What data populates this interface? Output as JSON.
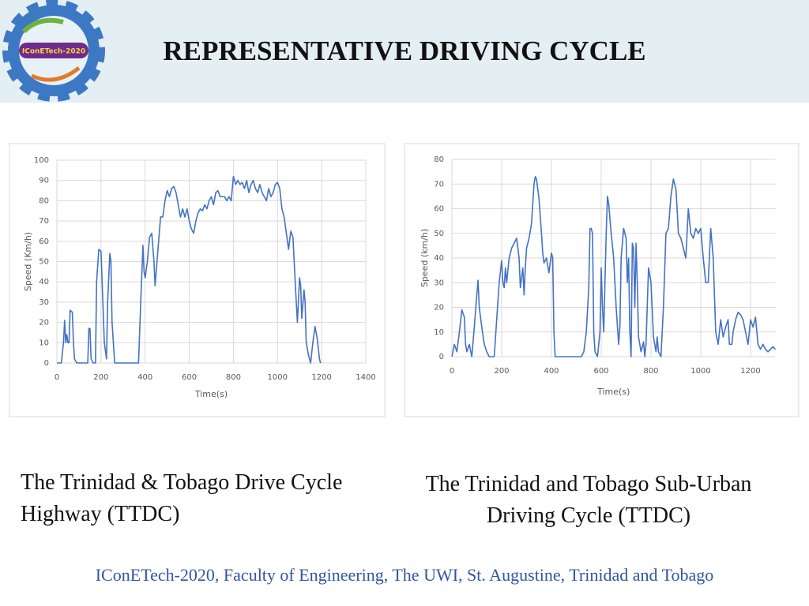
{
  "title": "REPRESENTATIVE DRIVING CYCLE",
  "logo_text": "IConETech-2020",
  "footer": "IConETech-2020, Faculty of Engineering, The UWI, St. Augustine, Trinidad and Tobago",
  "chart_data": [
    {
      "type": "line",
      "caption": "The Trinidad & Tobago Drive Cycle Highway (TTDC)",
      "xlabel": "Time(s)",
      "ylabel": "Speed (Km/h)",
      "color": "#4472c4",
      "grid": true,
      "xlim": [
        0,
        1400
      ],
      "xticks": [
        0,
        200,
        400,
        600,
        800,
        1000,
        1200,
        1400
      ],
      "ylim": [
        0,
        100
      ],
      "yticks": [
        0,
        10,
        20,
        30,
        40,
        50,
        60,
        70,
        80,
        90,
        100
      ],
      "x": [
        0,
        20,
        30,
        35,
        40,
        45,
        50,
        55,
        60,
        70,
        75,
        80,
        90,
        140,
        145,
        150,
        155,
        165,
        175,
        180,
        185,
        190,
        200,
        205,
        215,
        225,
        230,
        240,
        245,
        250,
        262,
        370,
        380,
        390,
        395,
        400,
        410,
        420,
        430,
        440,
        445,
        450,
        470,
        480,
        490,
        500,
        510,
        520,
        530,
        540,
        550,
        560,
        570,
        580,
        590,
        600,
        610,
        620,
        630,
        640,
        650,
        660,
        670,
        680,
        690,
        700,
        710,
        720,
        730,
        740,
        750,
        760,
        770,
        780,
        790,
        800,
        810,
        820,
        830,
        840,
        850,
        860,
        870,
        880,
        890,
        900,
        910,
        920,
        930,
        940,
        950,
        960,
        970,
        980,
        990,
        1000,
        1010,
        1020,
        1030,
        1040,
        1050,
        1060,
        1070,
        1080,
        1090,
        1100,
        1105,
        1110,
        1120,
        1125,
        1130,
        1140,
        1150,
        1160,
        1170,
        1180,
        1190,
        1195
      ],
      "values": [
        0,
        0,
        10,
        21,
        10,
        14,
        10,
        10,
        26,
        25,
        10,
        2,
        0,
        0,
        17,
        17,
        2,
        0,
        0,
        40,
        48,
        56,
        55,
        40,
        10,
        2,
        30,
        54,
        50,
        20,
        0,
        0,
        30,
        58,
        45,
        42,
        50,
        62,
        64,
        50,
        38,
        45,
        72,
        72,
        80,
        85,
        82,
        86,
        87,
        84,
        78,
        72,
        76,
        72,
        76,
        70,
        66,
        64,
        70,
        74,
        76,
        75,
        78,
        76,
        80,
        82,
        78,
        84,
        85,
        82,
        82,
        82,
        80,
        82,
        80,
        92,
        88,
        90,
        88,
        89,
        86,
        90,
        84,
        88,
        90,
        86,
        84,
        88,
        84,
        82,
        80,
        86,
        82,
        84,
        88,
        89,
        86,
        76,
        72,
        64,
        56,
        65,
        62,
        40,
        20,
        42,
        38,
        22,
        36,
        30,
        10,
        4,
        0,
        10,
        18,
        12,
        2,
        0
      ]
    },
    {
      "type": "line",
      "caption": "The Trinidad and Tobago Sub-Urban Driving Cycle (TTDC)",
      "xlabel": "Time(s)",
      "ylabel": "Speed (km/h)",
      "color": "#4472c4",
      "grid": true,
      "xlim": [
        0,
        1300
      ],
      "xticks": [
        0,
        200,
        400,
        600,
        800,
        1000,
        1200
      ],
      "ylim": [
        0,
        80
      ],
      "yticks": [
        0,
        10,
        20,
        30,
        40,
        50,
        60,
        70,
        80
      ],
      "x": [
        0,
        10,
        20,
        30,
        40,
        50,
        55,
        60,
        70,
        80,
        90,
        100,
        105,
        110,
        120,
        130,
        140,
        150,
        170,
        180,
        190,
        200,
        205,
        210,
        215,
        220,
        230,
        240,
        250,
        260,
        270,
        275,
        280,
        285,
        290,
        295,
        300,
        310,
        320,
        330,
        335,
        340,
        350,
        360,
        365,
        370,
        380,
        390,
        400,
        405,
        410,
        415,
        520,
        530,
        540,
        550,
        555,
        560,
        565,
        570,
        575,
        585,
        595,
        600,
        605,
        610,
        620,
        625,
        630,
        640,
        650,
        660,
        670,
        675,
        680,
        690,
        700,
        705,
        710,
        715,
        720,
        725,
        730,
        735,
        740,
        745,
        750,
        760,
        770,
        775,
        780,
        790,
        800,
        810,
        820,
        825,
        830,
        840,
        850,
        860,
        870,
        880,
        890,
        900,
        905,
        910,
        920,
        930,
        940,
        950,
        960,
        970,
        980,
        990,
        1000,
        1010,
        1020,
        1030,
        1040,
        1050,
        1060,
        1070,
        1080,
        1090,
        1100,
        1110,
        1115,
        1125,
        1130,
        1140,
        1150,
        1160,
        1170,
        1180,
        1190,
        1200,
        1210,
        1220,
        1230,
        1240,
        1250,
        1260,
        1270,
        1280,
        1290,
        1300
      ],
      "values": [
        0,
        5,
        2,
        10,
        19,
        16,
        5,
        2,
        5,
        0,
        12,
        25,
        31,
        20,
        12,
        5,
        2,
        0,
        0,
        15,
        30,
        39,
        30,
        28,
        36,
        30,
        40,
        44,
        46,
        48,
        40,
        28,
        32,
        36,
        25,
        36,
        44,
        48,
        54,
        70,
        73,
        72,
        64,
        50,
        42,
        38,
        40,
        34,
        42,
        40,
        10,
        0,
        0,
        2,
        10,
        28,
        52,
        52,
        50,
        10,
        2,
        0,
        10,
        36,
        20,
        10,
        50,
        65,
        62,
        50,
        40,
        20,
        5,
        12,
        40,
        52,
        48,
        30,
        40,
        10,
        0,
        46,
        44,
        20,
        46,
        30,
        8,
        2,
        6,
        0,
        5,
        36,
        30,
        8,
        2,
        8,
        2,
        0,
        20,
        50,
        52,
        65,
        72,
        68,
        60,
        50,
        48,
        44,
        40,
        60,
        50,
        48,
        52,
        50,
        52,
        40,
        30,
        30,
        52,
        40,
        10,
        5,
        15,
        8,
        12,
        15,
        5,
        5,
        10,
        15,
        18,
        17,
        15,
        10,
        5,
        15,
        12,
        16,
        5,
        3,
        5,
        3,
        2,
        3,
        4,
        3
      ]
    }
  ]
}
